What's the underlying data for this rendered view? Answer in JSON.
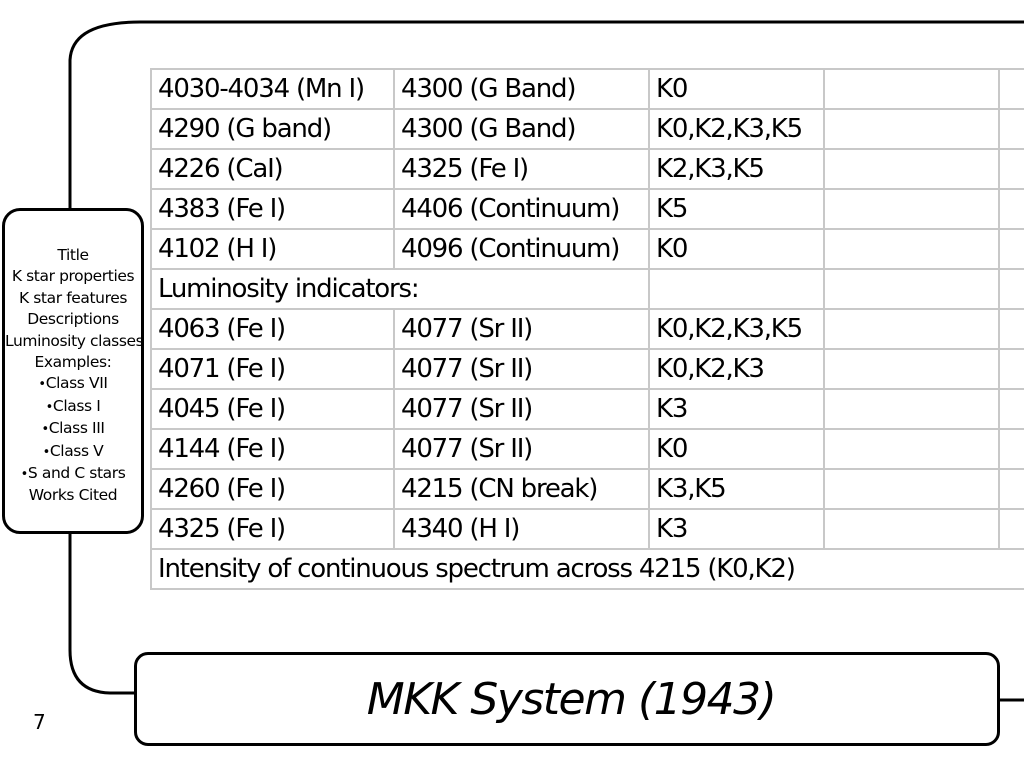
{
  "sidebar": {
    "items": [
      {
        "label": "Title",
        "bullet": false
      },
      {
        "label": "K star properties",
        "bullet": false
      },
      {
        "label": "K star features",
        "bullet": false
      },
      {
        "label": "Descriptions",
        "bullet": false
      },
      {
        "label": "Luminosity classes",
        "bullet": false
      },
      {
        "label": "Examples:",
        "bullet": false
      },
      {
        "label": "Class VII",
        "bullet": true
      },
      {
        "label": "Class I",
        "bullet": true
      },
      {
        "label": "Class III",
        "bullet": true
      },
      {
        "label": "Class V",
        "bullet": true
      },
      {
        "label": "S and C stars",
        "bullet": true
      },
      {
        "label": "Works Cited",
        "bullet": false
      }
    ]
  },
  "table": {
    "rows": [
      [
        "4030-4034 (Mn I)",
        "4300 (G Band)",
        "K0",
        "",
        ""
      ],
      [
        "4290 (G band)",
        "4300 (G Band)",
        "K0,K2,K3,K5",
        "",
        ""
      ],
      [
        "4226 (CaI)",
        "4325 (Fe I)",
        "K2,K3,K5",
        "",
        ""
      ],
      [
        "4383 (Fe I)",
        "4406 (Continuum)",
        "K5",
        "",
        ""
      ],
      [
        "4102 (H I)",
        "4096 (Continuum)",
        "K0",
        "",
        ""
      ],
      [
        "Luminosity indicators:",
        "",
        "",
        ""
      ],
      [
        "4063 (Fe I)",
        "4077 (Sr II)",
        "K0,K2,K3,K5",
        "",
        ""
      ],
      [
        "4071 (Fe I)",
        "4077 (Sr II)",
        "K0,K2,K3",
        "",
        ""
      ],
      [
        "4045 (Fe I)",
        "4077 (Sr II)",
        "K3",
        "",
        ""
      ],
      [
        "4144 (Fe I)",
        "4077 (Sr II)",
        "K0",
        "",
        ""
      ],
      [
        "4260 (Fe I)",
        "4215 (CN break)",
        "K3,K5",
        "",
        ""
      ],
      [
        "4325 (Fe I)",
        "4340 (H I)",
        "K3",
        "",
        ""
      ],
      [
        "Intensity of continuous spectrum across 4215 (K0,K2)"
      ]
    ]
  },
  "slide_title": "MKK System (1943)",
  "page_number": "7",
  "colors": {
    "grid": "#c8c8c8",
    "frame": "#000000"
  }
}
